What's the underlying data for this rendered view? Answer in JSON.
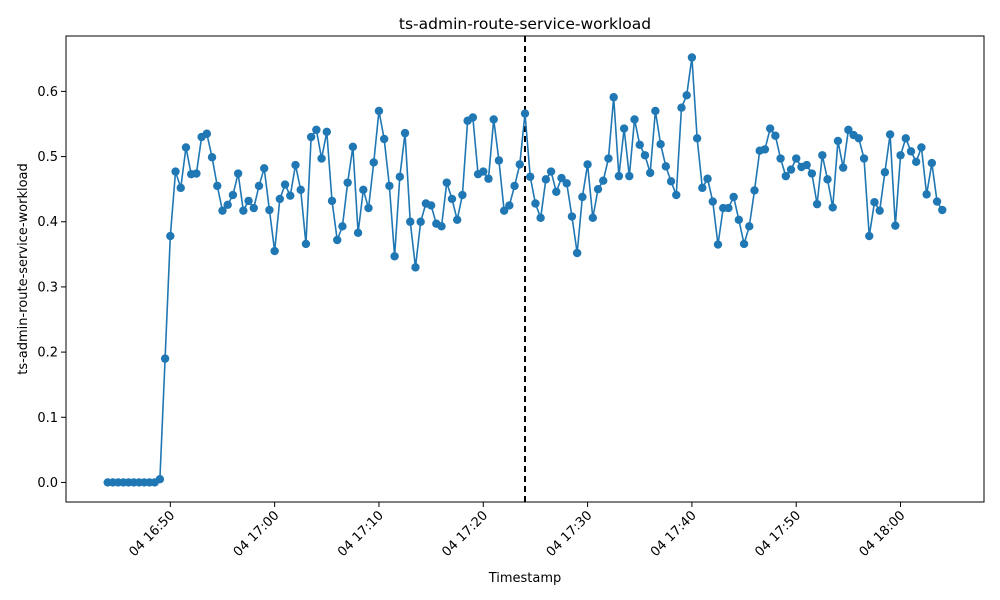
{
  "chart_data": {
    "type": "line",
    "title": "ts-admin-route-service-workload",
    "xlabel": "Timestamp",
    "ylabel": "ts-admin-route-service-workload",
    "x_start": "04 16:44",
    "x_step_minutes": 0.5,
    "x_ticks": [
      "04 16:50",
      "04 17:00",
      "04 17:10",
      "04 17:20",
      "04 17:30",
      "04 17:40",
      "04 17:50",
      "04 18:00"
    ],
    "y_ticks": [
      "0.0",
      "0.1",
      "0.2",
      "0.3",
      "0.4",
      "0.5",
      "0.6"
    ],
    "ylim": [
      -0.03,
      0.685
    ],
    "vline_x": "04 17:24",
    "grid": false,
    "colors": {
      "series": "#1f77b4",
      "vline": "#000000"
    },
    "series": [
      {
        "values": [
          0.0,
          0.0,
          0.0,
          0.0,
          0.0,
          0.0,
          0.0,
          0.0,
          0.0,
          0.0,
          0.005,
          0.19,
          0.378,
          0.477,
          0.452,
          0.514,
          0.473,
          0.474,
          0.53,
          0.535,
          0.499,
          0.455,
          0.417,
          0.426,
          0.441,
          0.474,
          0.417,
          0.432,
          0.421,
          0.455,
          0.482,
          0.418,
          0.355,
          0.435,
          0.457,
          0.44,
          0.487,
          0.449,
          0.366,
          0.53,
          0.541,
          0.497,
          0.538,
          0.432,
          0.372,
          0.393,
          0.46,
          0.515,
          0.383,
          0.449,
          0.421,
          0.491,
          0.57,
          0.527,
          0.455,
          0.347,
          0.469,
          0.536,
          0.4,
          0.33,
          0.4,
          0.428,
          0.425,
          0.397,
          0.393,
          0.46,
          0.435,
          0.403,
          0.441,
          0.555,
          0.56,
          0.473,
          0.477,
          0.466,
          0.557,
          0.494,
          0.417,
          0.425,
          0.455,
          0.488,
          0.566,
          0.469,
          0.428,
          0.406,
          0.465,
          0.477,
          0.446,
          0.467,
          0.459,
          0.408,
          0.352,
          0.438,
          0.488,
          0.406,
          0.45,
          0.463,
          0.497,
          0.591,
          0.47,
          0.543,
          0.47,
          0.557,
          0.518,
          0.502,
          0.475,
          0.57,
          0.519,
          0.485,
          0.462,
          0.441,
          0.575,
          0.594,
          0.652,
          0.528,
          0.452,
          0.466,
          0.431,
          0.365,
          0.421,
          0.421,
          0.438,
          0.403,
          0.366,
          0.393,
          0.448,
          0.509,
          0.511,
          0.543,
          0.532,
          0.497,
          0.47,
          0.48,
          0.497,
          0.484,
          0.487,
          0.474,
          0.427,
          0.502,
          0.465,
          0.422,
          0.524,
          0.483,
          0.541,
          0.533,
          0.528,
          0.497,
          0.378,
          0.43,
          0.417,
          0.476,
          0.534,
          0.394,
          0.502,
          0.528,
          0.508,
          0.492,
          0.514,
          0.442,
          0.49,
          0.431,
          0.418
        ]
      }
    ]
  }
}
